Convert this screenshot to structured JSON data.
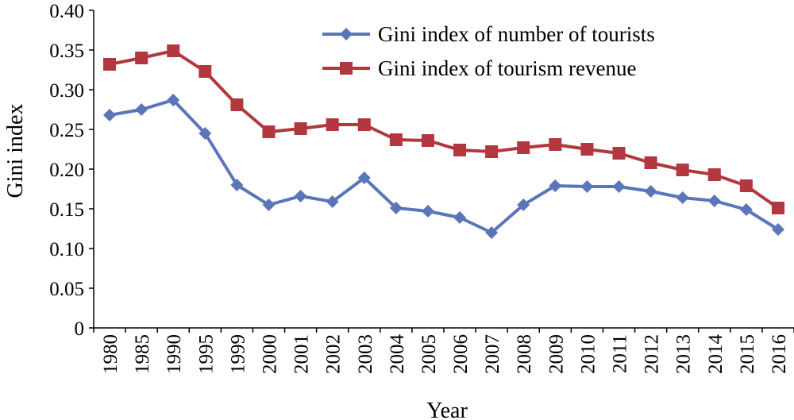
{
  "chart_data": {
    "type": "line",
    "categories": [
      "1980",
      "1985",
      "1990",
      "1995",
      "1999",
      "2000",
      "2001",
      "2002",
      "2003",
      "2004",
      "2005",
      "2006",
      "2007",
      "2008",
      "2009",
      "2010",
      "2011",
      "2012",
      "2013",
      "2014",
      "2015",
      "2016"
    ],
    "series": [
      {
        "name": "Gini index of number of tourists",
        "color": "#5b75b9",
        "marker": "diamond",
        "values": [
          0.268,
          0.275,
          0.287,
          0.245,
          0.18,
          0.155,
          0.166,
          0.159,
          0.189,
          0.151,
          0.147,
          0.139,
          0.12,
          0.155,
          0.179,
          0.178,
          0.178,
          0.172,
          0.164,
          0.16,
          0.149,
          0.124
        ]
      },
      {
        "name": "Gini index of tourism revenue",
        "color": "#b2373e",
        "marker": "square",
        "values": [
          0.332,
          0.34,
          0.349,
          0.323,
          0.281,
          0.247,
          0.251,
          0.256,
          0.256,
          0.237,
          0.236,
          0.224,
          0.222,
          0.227,
          0.231,
          0.225,
          0.22,
          0.208,
          0.199,
          0.193,
          0.179,
          0.151
        ]
      }
    ],
    "title": "",
    "xlabel": "Year",
    "ylabel": "Gini index",
    "ylim": [
      0,
      0.4
    ],
    "yticks": [
      "0",
      "0.05",
      "0.10",
      "0.15",
      "0.20",
      "0.25",
      "0.30",
      "0.35",
      "0.40"
    ],
    "yticks_values": [
      0,
      0.05,
      0.1,
      0.15,
      0.2,
      0.25,
      0.3,
      0.35,
      0.4
    ],
    "grid": false,
    "legend_position": "top-right"
  }
}
